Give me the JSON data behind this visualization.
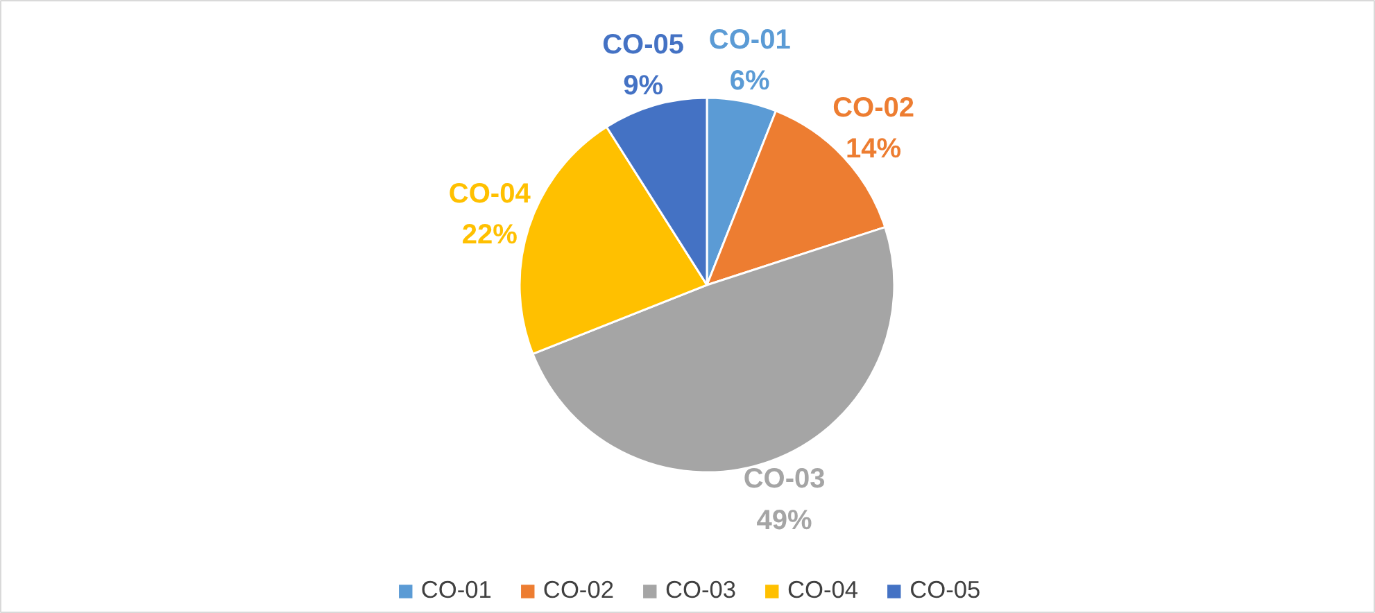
{
  "chart_data": {
    "type": "pie",
    "categories": [
      "CO-01",
      "CO-02",
      "CO-03",
      "CO-04",
      "CO-05"
    ],
    "values": [
      6,
      14,
      49,
      22,
      9
    ],
    "value_labels": [
      "6%",
      "14%",
      "49%",
      "22%",
      "9%"
    ],
    "colors": [
      "#5b9bd5",
      "#ed7d31",
      "#a5a5a5",
      "#ffc000",
      "#4472c4"
    ],
    "legend": "bottom"
  }
}
